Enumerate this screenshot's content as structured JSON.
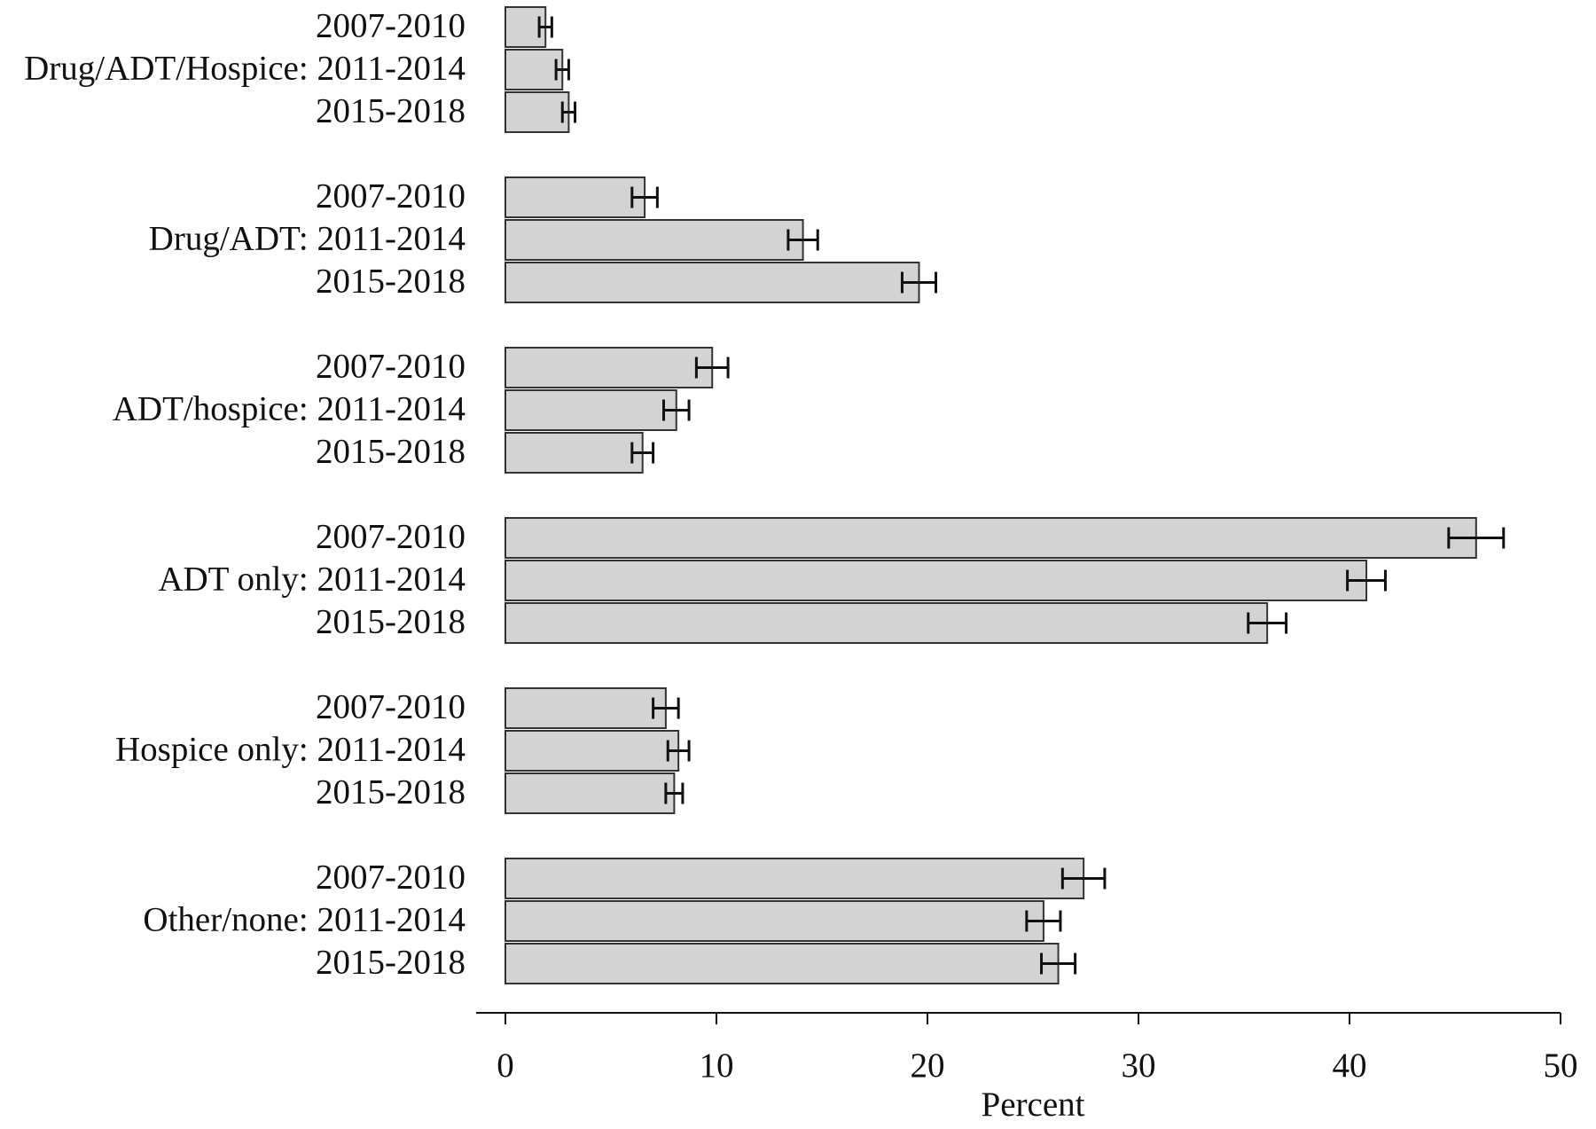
{
  "chart_data": {
    "type": "barh",
    "x_label": "Percent",
    "categories": [
      "2007-2010",
      "Drug/ADT/Hospice: 2011-2014",
      "2015-2018",
      "2007-2010",
      "Drug/ADT: 2011-2014",
      "2015-2018",
      "2007-2010",
      "ADT/hospice: 2011-2014",
      "2015-2018",
      "2007-2010",
      "ADT only: 2011-2014",
      "2015-2018",
      "2007-2010",
      "Hospice only: 2011-2014",
      "2015-2018",
      "2007-2010",
      "Other/none: 2011-2014",
      "2015-2018"
    ],
    "values": [
      1.9,
      2.7,
      3.0,
      6.6,
      14.1,
      19.6,
      9.8,
      8.1,
      6.5,
      46.0,
      40.8,
      36.1,
      7.6,
      8.2,
      8.0,
      27.4,
      25.5,
      26.2
    ],
    "errors": [
      0.3,
      0.3,
      0.3,
      0.6,
      0.7,
      0.8,
      0.75,
      0.6,
      0.5,
      1.3,
      0.9,
      0.9,
      0.6,
      0.5,
      0.4,
      1.0,
      0.8,
      0.8
    ],
    "color": "#d3d3d3",
    "xlim": [
      0,
      50
    ],
    "xticks": [
      0,
      10,
      20,
      30,
      40,
      50
    ]
  }
}
